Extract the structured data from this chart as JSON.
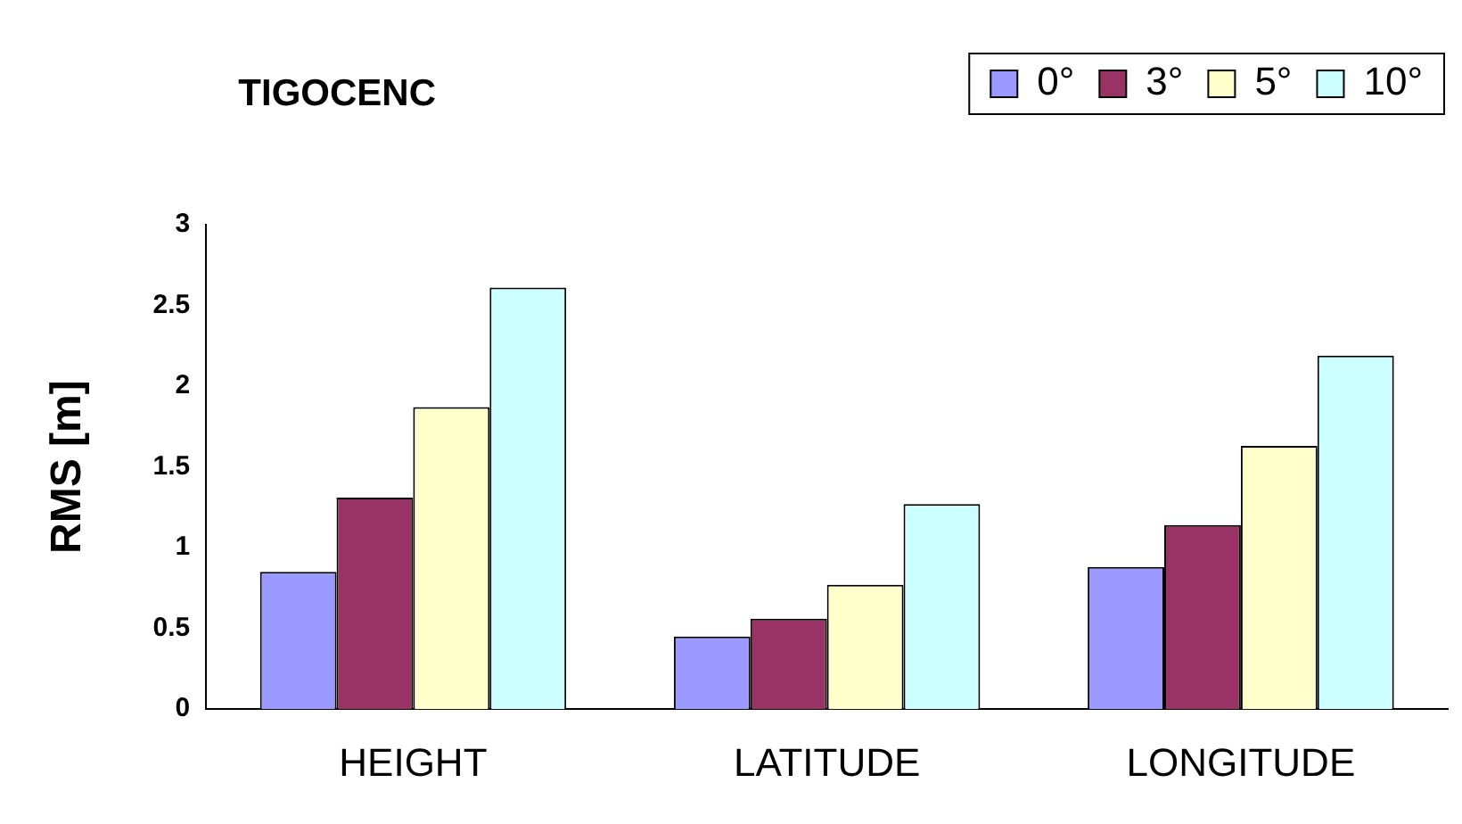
{
  "chart_data": {
    "type": "bar",
    "title": "TIGOCENC",
    "ylabel": "RMS [m]",
    "categories": [
      "HEIGHT",
      "LATITUDE",
      "LONGITUDE"
    ],
    "series": [
      {
        "name": "0°",
        "color": "#9999ff",
        "values": [
          0.85,
          0.45,
          0.88
        ]
      },
      {
        "name": "3°",
        "color": "#993366",
        "values": [
          1.31,
          0.56,
          1.14
        ]
      },
      {
        "name": "5°",
        "color": "#ffffcc",
        "values": [
          1.87,
          0.77,
          1.63
        ]
      },
      {
        "name": "10°",
        "color": "#ccffff",
        "values": [
          2.61,
          1.27,
          2.19
        ]
      }
    ],
    "ylim": [
      0,
      3
    ],
    "yticks": [
      0,
      0.5,
      1,
      1.5,
      2,
      2.5,
      3
    ],
    "grid": false,
    "legend": "top right"
  }
}
